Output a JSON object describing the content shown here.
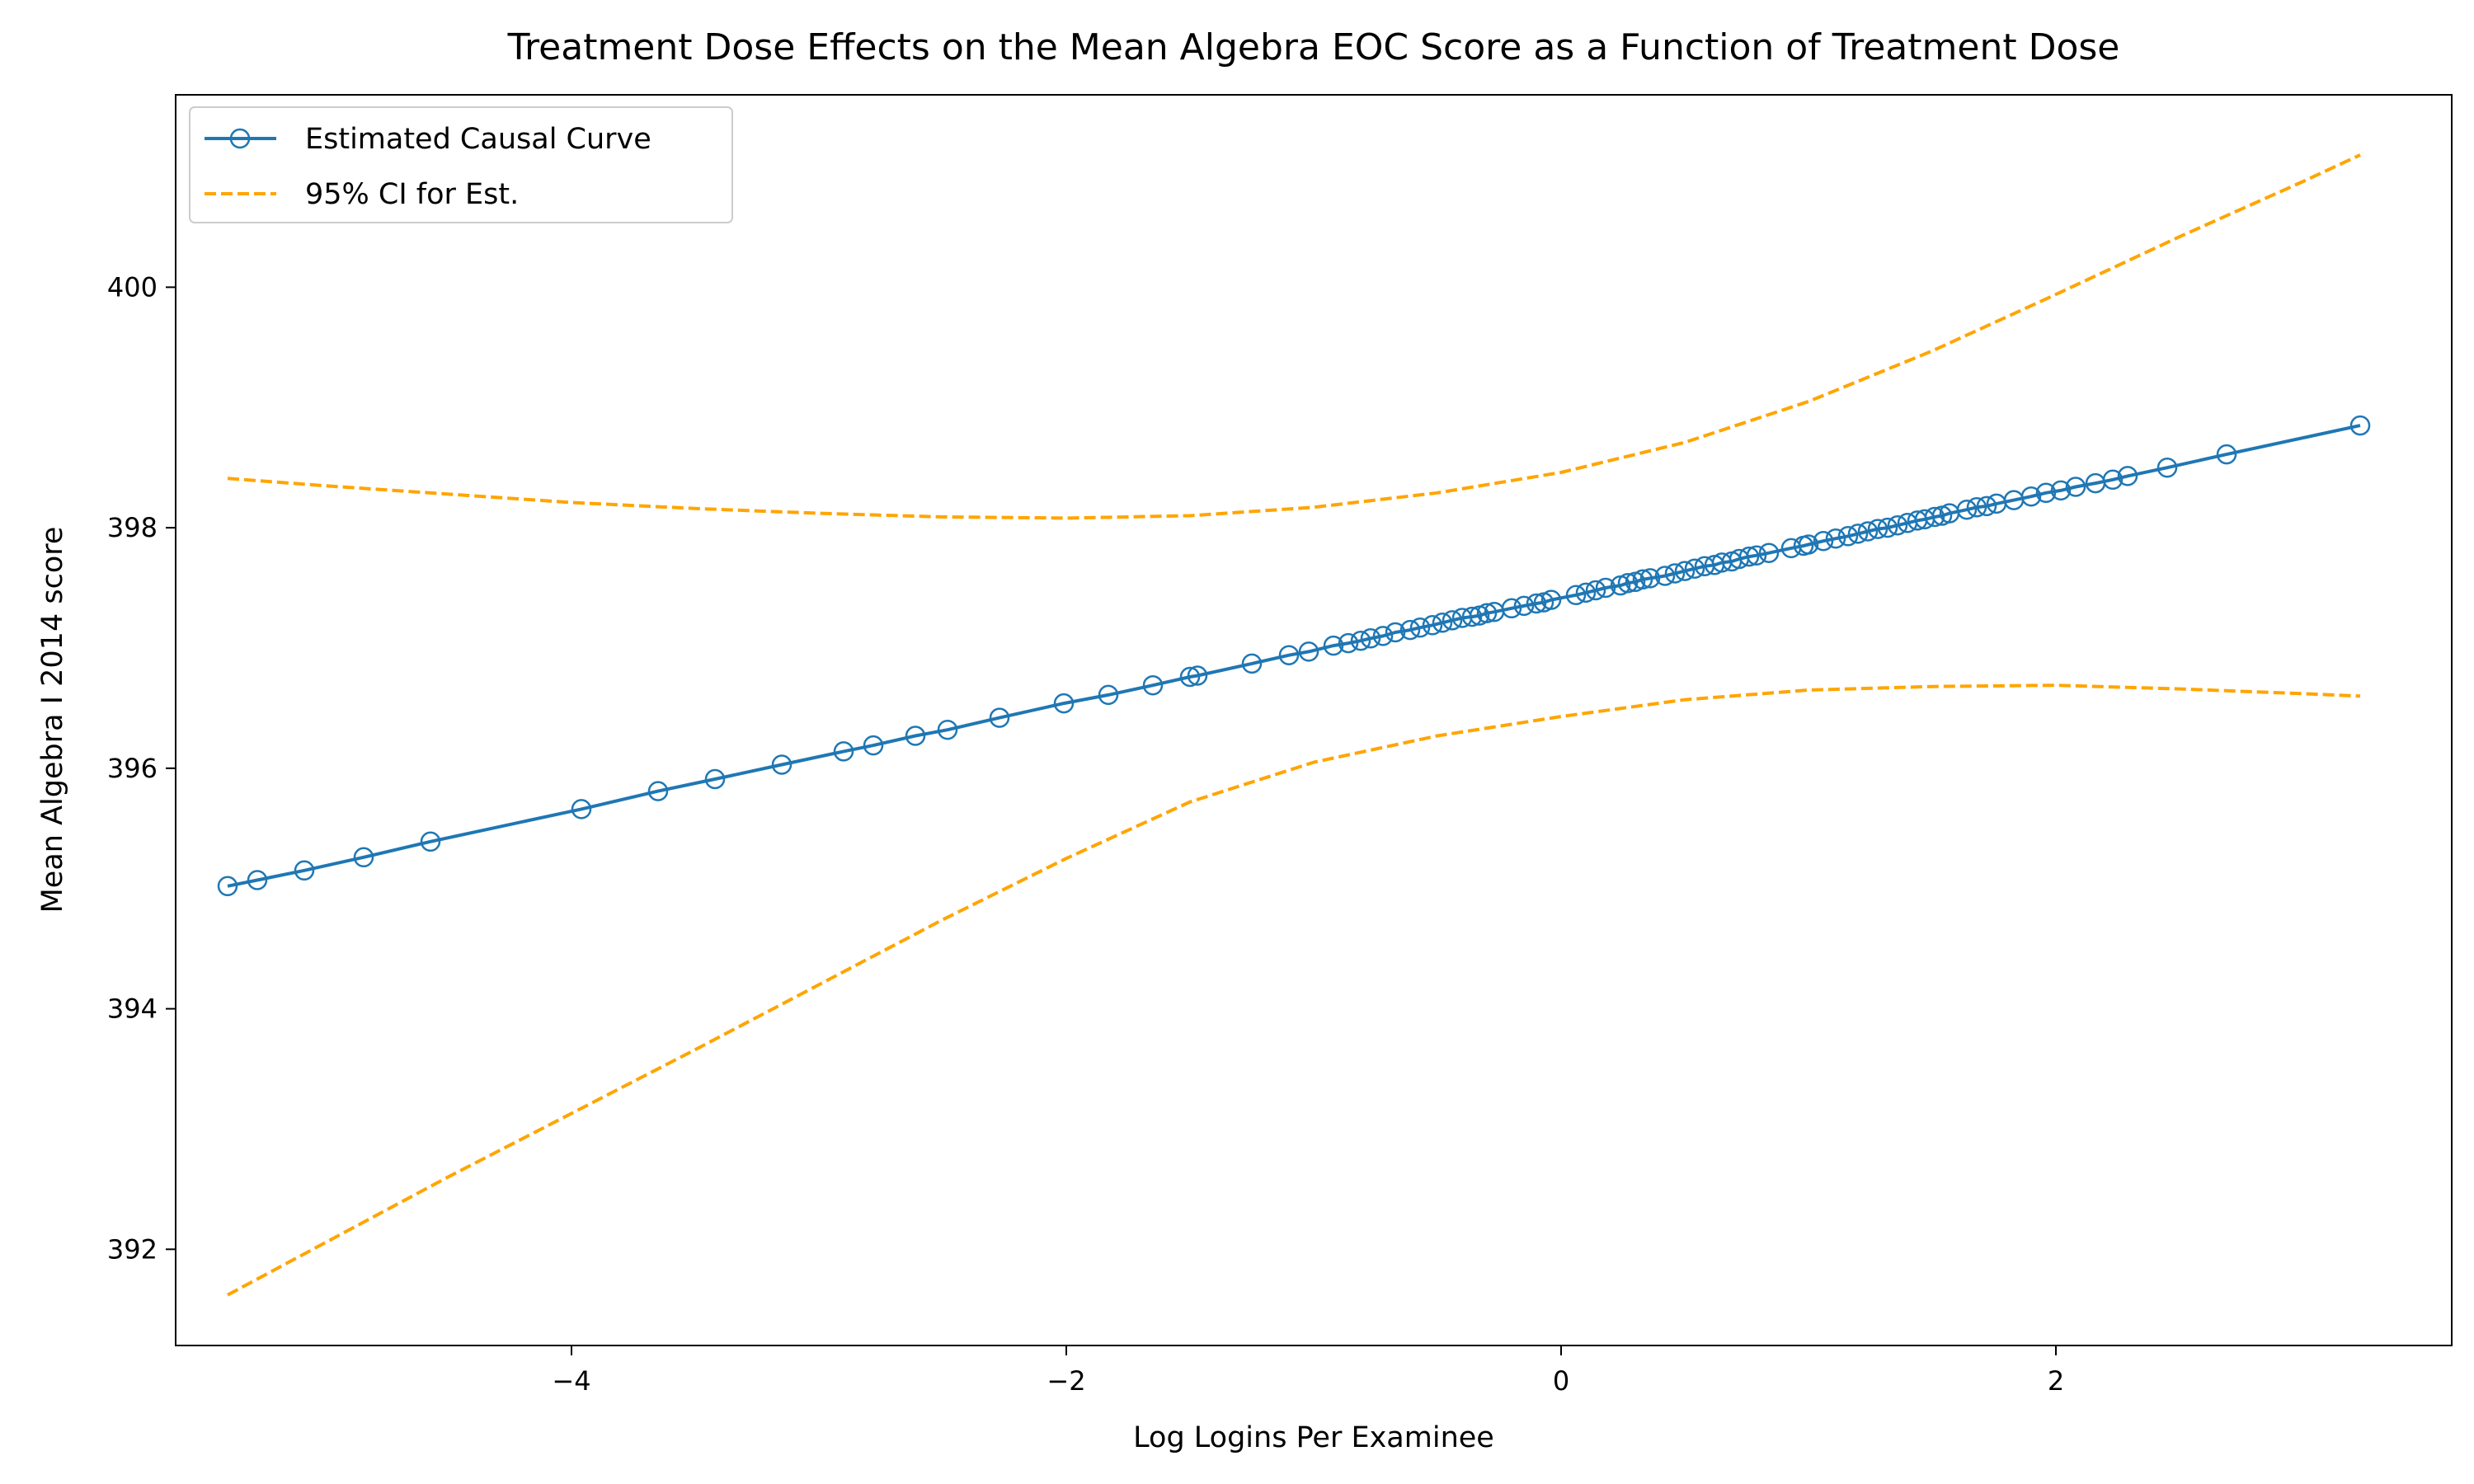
{
  "chart_data": {
    "type": "line",
    "title": "Treatment Dose Effects on the Mean Algebra EOC Score as a Function of Treatment Dose",
    "xlabel": "Log Logins Per Examinee",
    "ylabel": "Mean Algebra I 2014 score",
    "xlim": [
      -5.6,
      3.6
    ],
    "ylim": [
      391.2,
      401.6
    ],
    "xticks": [
      -4,
      -2,
      0,
      2
    ],
    "xtick_labels": [
      "−4",
      "−2",
      "0",
      "2"
    ],
    "yticks": [
      392,
      394,
      396,
      398,
      400
    ],
    "ytick_labels": [
      "392",
      "394",
      "396",
      "398",
      "400"
    ],
    "grid": false,
    "legend_position": "top-left",
    "series": [
      {
        "name": "Estimated Causal Curve",
        "style": "solid",
        "marker": "open-circle",
        "color": "#1f77b4",
        "x": [
          -5.39,
          -5.27,
          -5.08,
          -4.84,
          -4.57,
          -3.96,
          -3.65,
          -3.42,
          -3.15,
          -2.9,
          -2.78,
          -2.61,
          -2.48,
          -2.27,
          -2.01,
          -1.83,
          -1.65,
          -1.5,
          -1.47,
          -1.25,
          -1.1,
          -1.02,
          -0.92,
          -0.86,
          -0.81,
          -0.77,
          -0.72,
          -0.67,
          -0.61,
          -0.57,
          -0.52,
          -0.48,
          -0.44,
          -0.4,
          -0.36,
          -0.33,
          -0.3,
          -0.27,
          -0.2,
          -0.15,
          -0.1,
          -0.07,
          -0.04,
          0.06,
          0.1,
          0.14,
          0.18,
          0.24,
          0.27,
          0.3,
          0.33,
          0.36,
          0.42,
          0.46,
          0.5,
          0.54,
          0.58,
          0.62,
          0.65,
          0.69,
          0.72,
          0.76,
          0.79,
          0.84,
          0.93,
          0.98,
          1.0,
          1.06,
          1.11,
          1.16,
          1.2,
          1.24,
          1.28,
          1.32,
          1.36,
          1.4,
          1.44,
          1.47,
          1.51,
          1.54,
          1.57,
          1.64,
          1.68,
          1.72,
          1.76,
          1.83,
          1.9,
          1.96,
          2.02,
          2.08,
          2.16,
          2.23,
          2.29,
          2.45,
          2.69,
          3.23
        ],
        "y": [
          395.02,
          395.07,
          395.15,
          395.26,
          395.39,
          395.66,
          395.81,
          395.91,
          396.03,
          396.14,
          396.19,
          396.27,
          396.32,
          396.42,
          396.54,
          396.61,
          396.69,
          396.76,
          396.77,
          396.87,
          396.94,
          396.97,
          397.02,
          397.04,
          397.06,
          397.08,
          397.1,
          397.13,
          397.15,
          397.17,
          397.19,
          397.21,
          397.23,
          397.25,
          397.26,
          397.27,
          397.29,
          397.3,
          397.33,
          397.35,
          397.37,
          397.38,
          397.4,
          397.44,
          397.46,
          397.48,
          397.5,
          397.52,
          397.54,
          397.55,
          397.57,
          397.58,
          397.6,
          397.62,
          397.64,
          397.66,
          397.68,
          397.69,
          397.71,
          397.72,
          397.74,
          397.76,
          397.77,
          397.79,
          397.83,
          397.85,
          397.86,
          397.89,
          397.91,
          397.93,
          397.95,
          397.97,
          397.99,
          398.0,
          398.02,
          398.04,
          398.06,
          398.07,
          398.09,
          398.1,
          398.12,
          398.15,
          398.17,
          398.18,
          398.2,
          398.23,
          398.26,
          398.29,
          398.31,
          398.34,
          398.37,
          398.4,
          398.43,
          398.5,
          398.61,
          398.85
        ]
      },
      {
        "name": "95% CI for Est.",
        "style": "dashed",
        "color": "#ffa500",
        "x": [
          -5.39,
          -5.0,
          -4.5,
          -4.0,
          -3.5,
          -3.0,
          -2.5,
          -2.0,
          -1.5,
          -1.0,
          -0.5,
          0.0,
          0.5,
          1.0,
          1.5,
          2.0,
          2.5,
          3.0,
          3.23
        ],
        "y": [
          398.41,
          398.35,
          398.28,
          398.21,
          398.16,
          398.12,
          398.09,
          398.08,
          398.1,
          398.17,
          398.29,
          398.46,
          398.71,
          399.05,
          399.47,
          399.94,
          400.42,
          400.88,
          401.1
        ]
      },
      {
        "name": "95% CI for Est. (lower)",
        "style": "dashed",
        "color": "#ffa500",
        "x": [
          -5.39,
          -5.0,
          -4.5,
          -4.0,
          -3.5,
          -3.0,
          -2.5,
          -2.0,
          -1.5,
          -1.0,
          -0.5,
          0.0,
          0.5,
          1.0,
          1.5,
          2.0,
          2.5,
          3.0,
          3.23
        ],
        "y": [
          391.62,
          392.05,
          392.6,
          393.13,
          393.66,
          394.2,
          394.74,
          395.25,
          395.72,
          396.05,
          396.27,
          396.43,
          396.57,
          396.65,
          396.68,
          396.69,
          396.66,
          396.62,
          396.6
        ]
      }
    ]
  }
}
